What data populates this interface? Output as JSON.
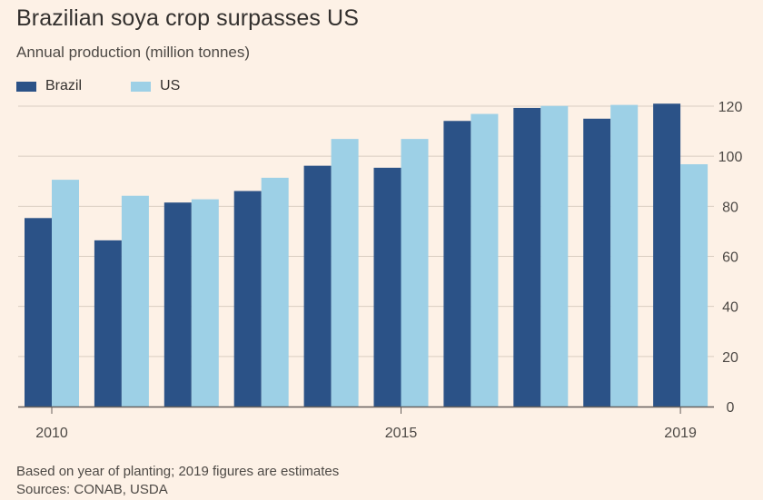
{
  "title": "Brazilian soya crop surpasses US",
  "subtitle": "Annual production (million tonnes)",
  "notes": "Based on year of planting; 2019 figures are estimates",
  "sources": "Sources: CONAB, USDA",
  "colors": {
    "Brazil": "#2b5287",
    "US": "#9dd0e6",
    "grid": "#d9cdc1",
    "axis": "#66605c",
    "text": "#4d4945"
  },
  "chart_data": {
    "type": "bar",
    "categories": [
      2010,
      2011,
      2012,
      2013,
      2014,
      2015,
      2016,
      2017,
      2018,
      2019
    ],
    "x_tick_labels": [
      "2010",
      "2015",
      "2019"
    ],
    "series": [
      {
        "name": "Brazil",
        "values": [
          75.3,
          66.4,
          81.5,
          86.1,
          96.2,
          95.4,
          114.1,
          119.3,
          115.0,
          121.0
        ]
      },
      {
        "name": "US",
        "values": [
          90.6,
          84.2,
          82.8,
          91.4,
          106.9,
          106.9,
          116.9,
          120.1,
          120.5,
          96.8
        ]
      }
    ],
    "y_ticks": [
      0,
      20,
      40,
      60,
      80,
      100,
      120
    ],
    "ylim": [
      0,
      120
    ],
    "y_axis_side": "right",
    "grid": true,
    "legend": "top-left"
  }
}
